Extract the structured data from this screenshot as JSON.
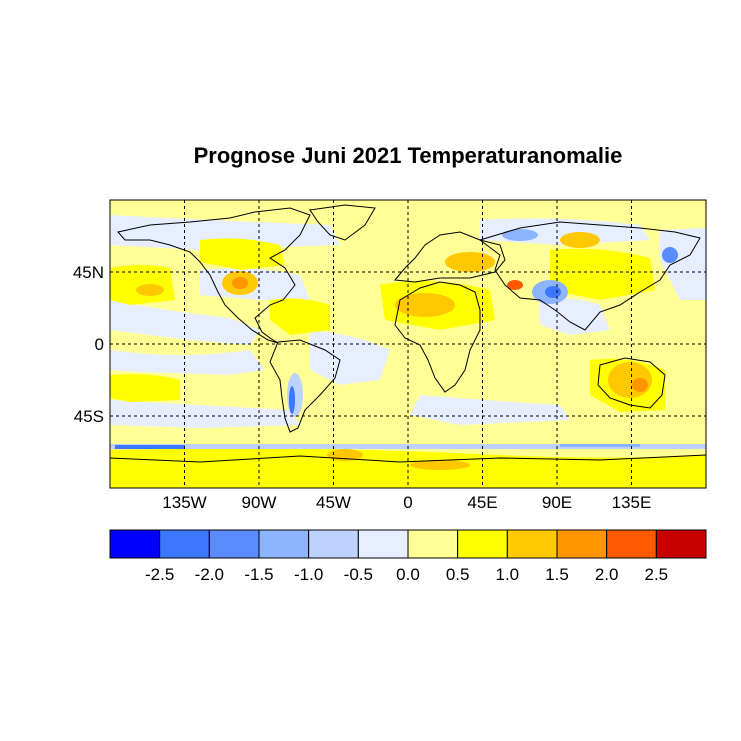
{
  "title": "Prognose Juni 2021 Temperaturanomalie",
  "map": {
    "projection": "equirectangular",
    "lon_range": [
      -180,
      180
    ],
    "lat_range": [
      -90,
      90
    ],
    "grid": "dashed, every 45 degrees"
  },
  "lon_ticks": [
    {
      "lon": -135,
      "label": "135W"
    },
    {
      "lon": -90,
      "label": "90W"
    },
    {
      "lon": -45,
      "label": "45W"
    },
    {
      "lon": 0,
      "label": "0"
    },
    {
      "lon": 45,
      "label": "45E"
    },
    {
      "lon": 90,
      "label": "90E"
    },
    {
      "lon": 135,
      "label": "135E"
    }
  ],
  "lat_ticks": [
    {
      "lat": 45,
      "label": "45N"
    },
    {
      "lat": 0,
      "label": "0"
    },
    {
      "lat": -45,
      "label": "45S"
    }
  ],
  "colorbar": {
    "colors": [
      "#0000ff",
      "#3c78ff",
      "#5a8cff",
      "#8cb4ff",
      "#bed2ff",
      "#e6eeff",
      "#ffff96",
      "#ffff00",
      "#ffc800",
      "#ff9600",
      "#ff5a00",
      "#c80000"
    ],
    "tick_labels": [
      "-2.5",
      "-2.0",
      "-1.5",
      "-1.0",
      "-0.5",
      "0.0",
      "0.5",
      "1.0",
      "1.5",
      "2.0",
      "2.5"
    ]
  }
}
